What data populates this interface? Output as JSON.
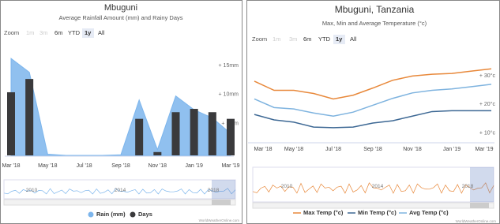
{
  "chart_data": [
    {
      "type": "combo",
      "title": "Mbuguni",
      "subtitle": "Average Rainfall Amount (mm) and Rainy Days",
      "zoom_label": "Zoom",
      "zoom_buttons": [
        "1m",
        "3m",
        "6m",
        "YTD",
        "1y",
        "All"
      ],
      "zoom_selected": 4,
      "zoom_disabled": [
        0,
        1
      ],
      "categories": [
        "Mar '18",
        null,
        "May '18",
        null,
        "Jul '18",
        null,
        "Sep '18",
        null,
        "Nov '18",
        null,
        "Jan '19",
        null,
        "Mar '19"
      ],
      "series": [
        {
          "name": "Rain (mm)",
          "type": "area",
          "color": "#7cb5ec",
          "values": [
            16.8,
            14.4,
            0.2,
            0,
            0,
            0,
            0.1,
            9.6,
            1.0,
            10.3,
            7.9,
            6.5,
            3.8
          ]
        },
        {
          "name": "Days",
          "type": "bar",
          "axis": "y2",
          "color": "#3a3a3c",
          "values": [
            19,
            23,
            0,
            0,
            0,
            0,
            0,
            11,
            1,
            13,
            14,
            13,
            11
          ]
        }
      ],
      "ylim": [
        0,
        19
      ],
      "yticks": [
        {
          "value": 5,
          "label": "+ 5mm"
        },
        {
          "value": 10,
          "label": "+ 10mm"
        },
        {
          "value": 15,
          "label": "+ 15mm"
        }
      ],
      "y2lim": [
        0,
        33
      ],
      "navigator_labels": [
        "2010",
        "2014",
        "2018"
      ],
      "navigator_color": "#7cb5ec",
      "credit": "WorldWeatherOnline.com"
    },
    {
      "type": "line",
      "title": "Mbuguni, Tanzania",
      "subtitle": "Max, Min and Average Temperature (°c)",
      "zoom_label": "Zoom",
      "zoom_buttons": [
        "1m",
        "3m",
        "6m",
        "YTD",
        "1y",
        "All"
      ],
      "zoom_selected": 4,
      "zoom_disabled": [
        0,
        1
      ],
      "categories": [
        "Mar '18",
        null,
        "May '18",
        null,
        "Jul '18",
        null,
        "Sep '18",
        null,
        "Nov '18",
        null,
        "Jan '19",
        null,
        "Mar '19"
      ],
      "series": [
        {
          "name": "Max Temp (°c)",
          "color": "#e8883a",
          "values": [
            29.2,
            26.0,
            26.0,
            24.9,
            23.0,
            24.3,
            26.8,
            29.5,
            31.0,
            31.6,
            31.9,
            32.7,
            33.5
          ]
        },
        {
          "name": "Min Temp (°c)",
          "color": "#3d6894",
          "values": [
            17.6,
            15.7,
            14.9,
            13.2,
            13.0,
            13.2,
            14.6,
            15.4,
            17.0,
            18.6,
            18.9,
            18.9,
            18.9
          ]
        },
        {
          "name": "Avg Temp (°c)",
          "color": "#7eb3df",
          "values": [
            23.0,
            20.0,
            19.5,
            18.1,
            17.0,
            18.4,
            20.8,
            23.2,
            25.1,
            26.0,
            26.5,
            27.3,
            28.1
          ]
        }
      ],
      "ylim": [
        8,
        41
      ],
      "yticks": [
        {
          "value": 10,
          "label": "+ 10°c"
        },
        {
          "value": 20,
          "label": "+ 20°c"
        },
        {
          "value": 30,
          "label": "+ 30°c"
        }
      ],
      "navigator_labels": [
        "2010",
        "2014",
        "2018"
      ],
      "navigator_color": "#e8883a",
      "credit": "WorldWeatherOnline.com"
    }
  ]
}
